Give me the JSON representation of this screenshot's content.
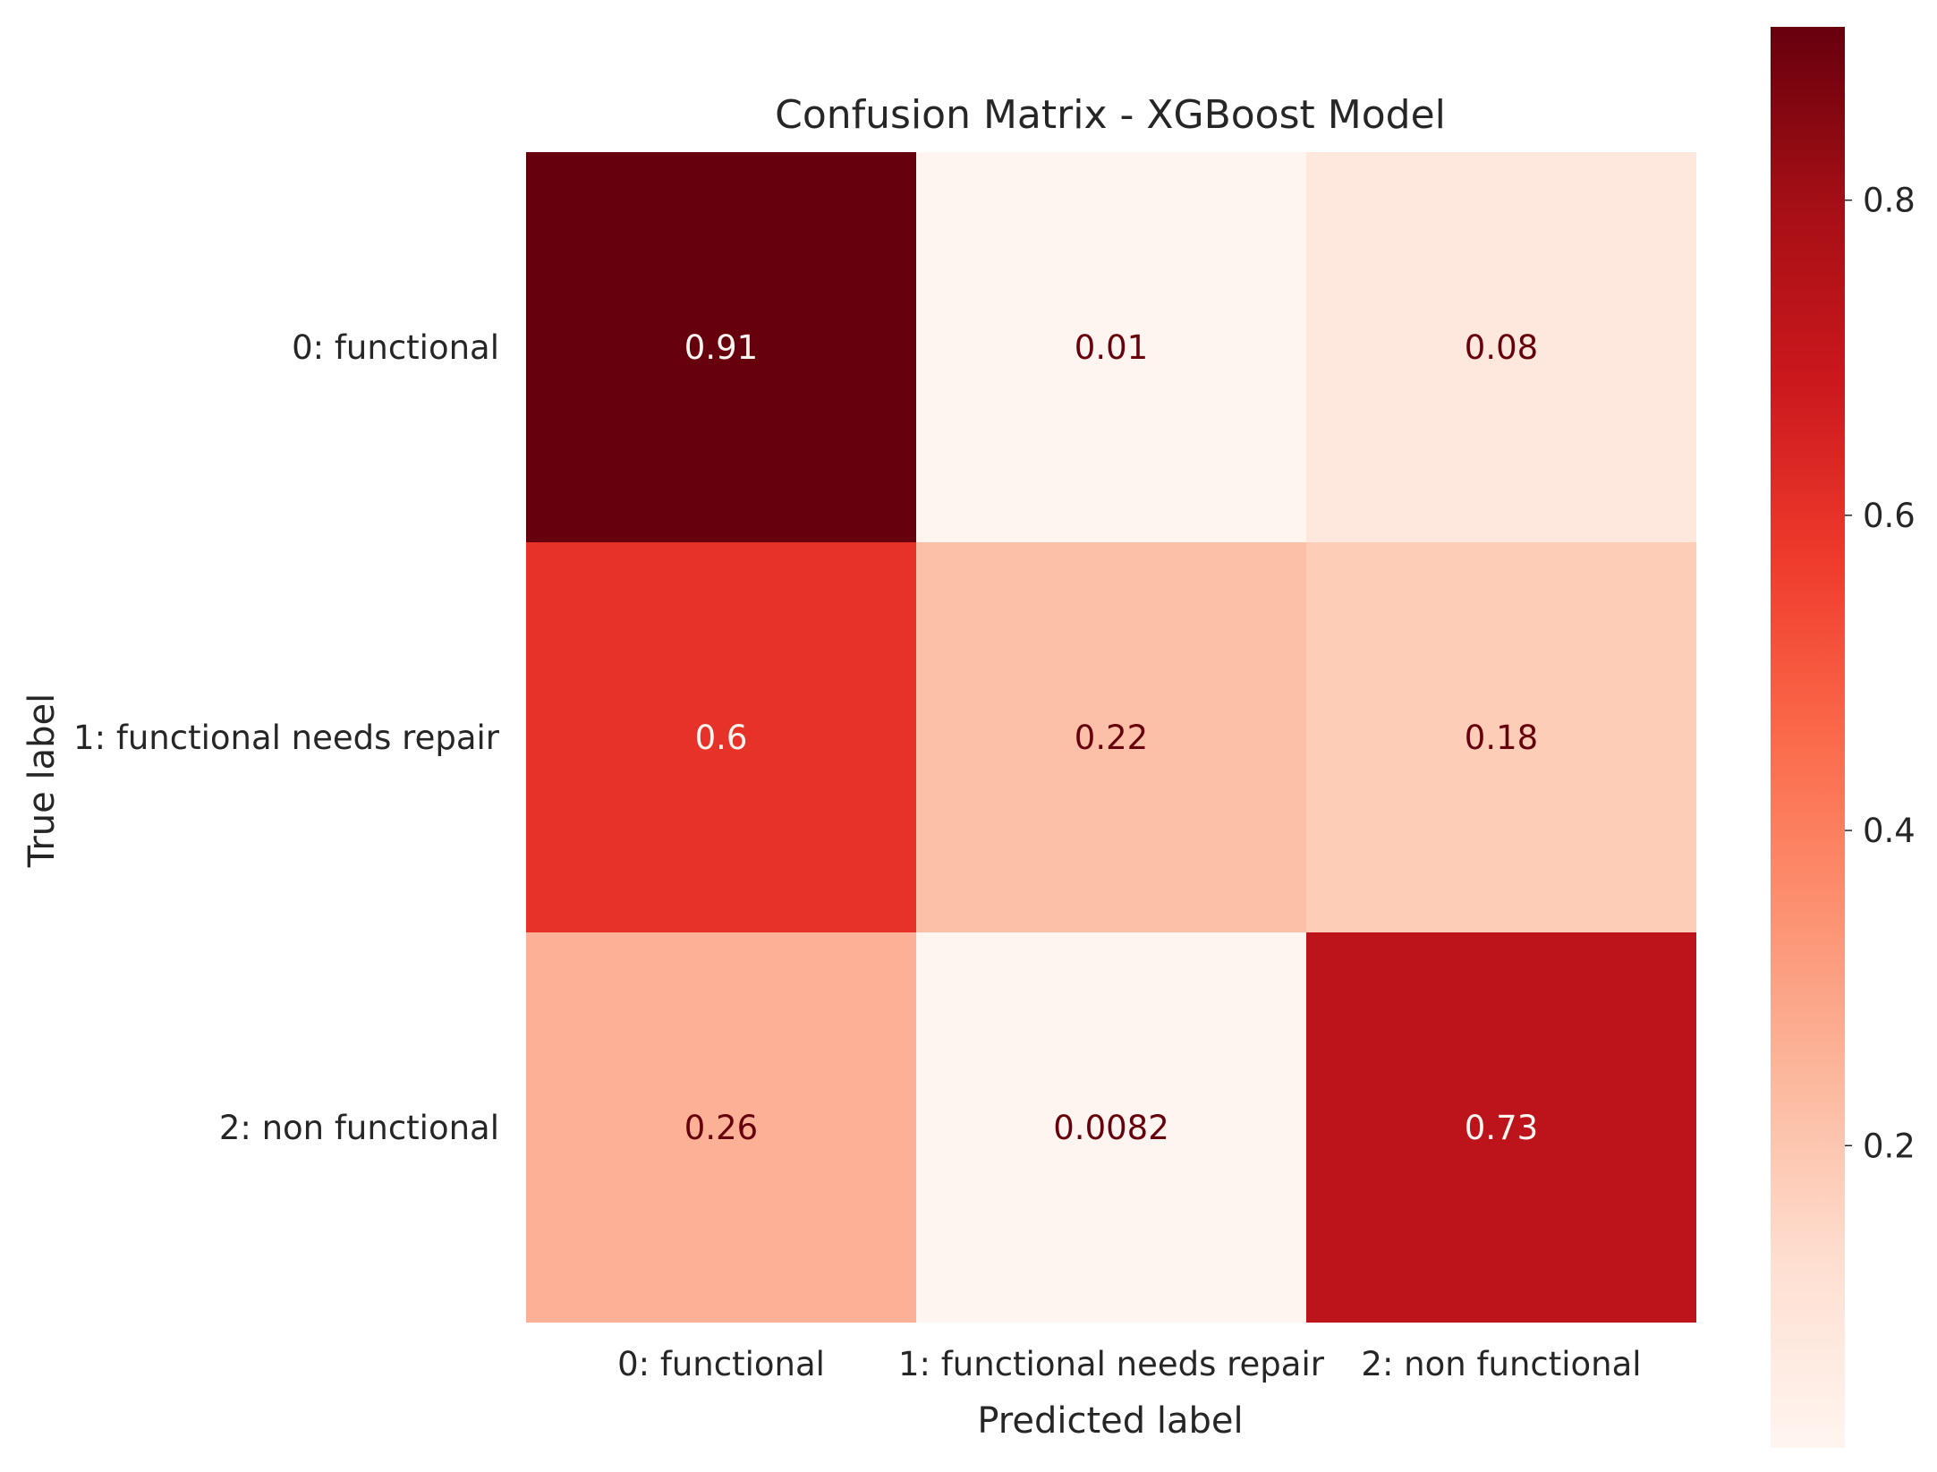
{
  "chart_data": {
    "type": "heatmap",
    "title": "Confusion Matrix - XGBoost Model",
    "xlabel": "Predicted label",
    "ylabel": "True label",
    "x_categories": [
      "0: functional",
      "1: functional needs repair",
      "2: non functional"
    ],
    "y_categories": [
      "0: functional",
      "1: functional needs repair",
      "2: non functional"
    ],
    "values": [
      [
        0.91,
        0.01,
        0.08
      ],
      [
        0.6,
        0.22,
        0.18
      ],
      [
        0.26,
        0.0082,
        0.73
      ]
    ],
    "value_labels": [
      [
        "0.91",
        "0.01",
        "0.08"
      ],
      [
        "0.6",
        "0.22",
        "0.18"
      ],
      [
        "0.26",
        "0.0082",
        "0.73"
      ]
    ],
    "colormap": "Reds",
    "color_range": [
      0.0082,
      0.91
    ],
    "colorbar_ticks": [
      0.2,
      0.4,
      0.6,
      0.8
    ],
    "colorbar_tick_labels": [
      "0.2",
      "0.4",
      "0.6",
      "0.8"
    ],
    "text_colors": {
      "dark": "#67000d",
      "light": "#fff5f0"
    },
    "grid": false
  }
}
